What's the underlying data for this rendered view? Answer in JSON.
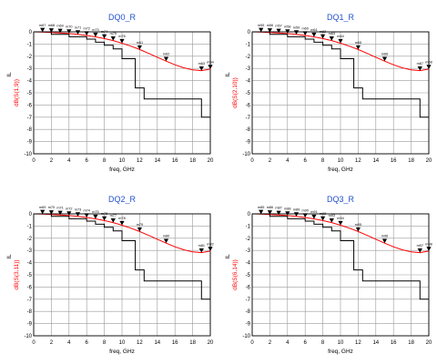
{
  "chart_data": [
    {
      "type": "line",
      "title": "DQ0_R",
      "xlabel": "freq, GHz",
      "ylabel_top": "IL",
      "ylabel_bottom": "dB(S(1,9))",
      "xlim": [
        0,
        20
      ],
      "ylim": [
        -10,
        0
      ],
      "x_ticks": [
        0,
        2,
        4,
        6,
        8,
        10,
        12,
        14,
        16,
        18,
        20
      ],
      "y_ticks": [
        0,
        -1,
        -2,
        -3,
        -4,
        -5,
        -6,
        -7,
        -8,
        -9,
        -10
      ],
      "grid": true,
      "series": [
        {
          "color": "#ff0000",
          "points": [
            [
              0,
              0
            ],
            [
              1,
              -0.02
            ],
            [
              2,
              -0.05
            ],
            [
              3,
              -0.09
            ],
            [
              4,
              -0.14
            ],
            [
              5,
              -0.21
            ],
            [
              6,
              -0.3
            ],
            [
              7,
              -0.41
            ],
            [
              8,
              -0.55
            ],
            [
              9,
              -0.72
            ],
            [
              10,
              -0.93
            ],
            [
              11,
              -1.17
            ],
            [
              12,
              -1.45
            ],
            [
              13,
              -1.76
            ],
            [
              14,
              -2.08
            ],
            [
              15,
              -2.4
            ],
            [
              16,
              -2.7
            ],
            [
              17,
              -2.95
            ],
            [
              18,
              -3.12
            ],
            [
              19,
              -3.18
            ],
            [
              20,
              -3.05
            ]
          ]
        },
        {
          "color": "#000000",
          "points": [
            [
              0,
              0
            ],
            [
              2,
              0
            ],
            [
              2,
              -0.2
            ],
            [
              4,
              -0.2
            ],
            [
              4,
              -0.4
            ],
            [
              6,
              -0.4
            ],
            [
              6,
              -0.6
            ],
            [
              7,
              -0.6
            ],
            [
              7,
              -0.85
            ],
            [
              8,
              -0.85
            ],
            [
              8,
              -1.1
            ],
            [
              9,
              -1.1
            ],
            [
              9,
              -1.4
            ],
            [
              10,
              -1.4
            ],
            [
              10,
              -2.2
            ],
            [
              11.5,
              -2.2
            ],
            [
              11.5,
              -4.6
            ],
            [
              12.5,
              -4.6
            ],
            [
              12.5,
              -5.5
            ],
            [
              19,
              -5.5
            ],
            [
              19,
              -7
            ],
            [
              20,
              -7
            ]
          ]
        }
      ],
      "markers": [
        {
          "label": "m67",
          "x": 1,
          "y": -0.02
        },
        {
          "label": "m68",
          "x": 2,
          "y": -0.05
        },
        {
          "label": "m69",
          "x": 3,
          "y": -0.09
        },
        {
          "label": "m70",
          "x": 4,
          "y": -0.14
        },
        {
          "label": "m71",
          "x": 5,
          "y": -0.21
        },
        {
          "label": "m72",
          "x": 6,
          "y": -0.3
        },
        {
          "label": "m73",
          "x": 7,
          "y": -0.41
        },
        {
          "label": "m74",
          "x": 8,
          "y": -0.55
        },
        {
          "label": "m75",
          "x": 9,
          "y": -0.72
        },
        {
          "label": "m76",
          "x": 10,
          "y": -0.93
        },
        {
          "label": "m61",
          "x": 12,
          "y": -1.45
        },
        {
          "label": "m62",
          "x": 15,
          "y": -2.4
        },
        {
          "label": "m63",
          "x": 19,
          "y": -3.18
        },
        {
          "label": "m64",
          "x": 20,
          "y": -3.05
        }
      ]
    },
    {
      "type": "line",
      "title": "DQ1_R",
      "xlabel": "freq, GHz",
      "ylabel_top": "IL",
      "ylabel_bottom": "dB(S(2,10))",
      "xlim": [
        0,
        20
      ],
      "ylim": [
        -10,
        0
      ],
      "x_ticks": [
        0,
        2,
        4,
        6,
        8,
        10,
        12,
        14,
        16,
        18,
        20
      ],
      "y_ticks": [
        0,
        -1,
        -2,
        -3,
        -4,
        -5,
        -6,
        -7,
        -8,
        -9,
        -10
      ],
      "grid": true,
      "series": [
        {
          "color": "#ff0000",
          "points": [
            [
              0,
              0
            ],
            [
              1,
              -0.02
            ],
            [
              2,
              -0.05
            ],
            [
              3,
              -0.09
            ],
            [
              4,
              -0.14
            ],
            [
              5,
              -0.21
            ],
            [
              6,
              -0.3
            ],
            [
              7,
              -0.41
            ],
            [
              8,
              -0.55
            ],
            [
              9,
              -0.72
            ],
            [
              10,
              -0.93
            ],
            [
              11,
              -1.17
            ],
            [
              12,
              -1.45
            ],
            [
              13,
              -1.76
            ],
            [
              14,
              -2.08
            ],
            [
              15,
              -2.4
            ],
            [
              16,
              -2.7
            ],
            [
              17,
              -2.95
            ],
            [
              18,
              -3.12
            ],
            [
              19,
              -3.18
            ],
            [
              20,
              -3.05
            ]
          ]
        },
        {
          "color": "#000000",
          "points": [
            [
              0,
              0
            ],
            [
              2,
              0
            ],
            [
              2,
              -0.2
            ],
            [
              4,
              -0.2
            ],
            [
              4,
              -0.4
            ],
            [
              6,
              -0.4
            ],
            [
              6,
              -0.6
            ],
            [
              7,
              -0.6
            ],
            [
              7,
              -0.85
            ],
            [
              8,
              -0.85
            ],
            [
              8,
              -1.1
            ],
            [
              9,
              -1.1
            ],
            [
              9,
              -1.4
            ],
            [
              10,
              -1.4
            ],
            [
              10,
              -2.2
            ],
            [
              11.5,
              -2.2
            ],
            [
              11.5,
              -4.6
            ],
            [
              12.5,
              -4.6
            ],
            [
              12.5,
              -5.5
            ],
            [
              19,
              -5.5
            ],
            [
              19,
              -7
            ],
            [
              20,
              -7
            ]
          ]
        }
      ],
      "markers": [
        {
          "label": "m55",
          "x": 1,
          "y": -0.02
        },
        {
          "label": "m56",
          "x": 2,
          "y": -0.05
        },
        {
          "label": "m57",
          "x": 3,
          "y": -0.09
        },
        {
          "label": "m58",
          "x": 4,
          "y": -0.14
        },
        {
          "label": "m59",
          "x": 5,
          "y": -0.21
        },
        {
          "label": "m60",
          "x": 6,
          "y": -0.3
        },
        {
          "label": "m61",
          "x": 7,
          "y": -0.41
        },
        {
          "label": "m62",
          "x": 8,
          "y": -0.55
        },
        {
          "label": "m63",
          "x": 9,
          "y": -0.72
        },
        {
          "label": "m64",
          "x": 10,
          "y": -0.93
        },
        {
          "label": "m65",
          "x": 12,
          "y": -1.45
        },
        {
          "label": "m66",
          "x": 15,
          "y": -2.4
        },
        {
          "label": "m67",
          "x": 19,
          "y": -3.18
        },
        {
          "label": "m68",
          "x": 20,
          "y": -3.05
        }
      ]
    },
    {
      "type": "line",
      "title": "DQ2_R",
      "xlabel": "freq, GHz",
      "ylabel_top": "IL",
      "ylabel_bottom": "dB(S(3,11))",
      "xlim": [
        0,
        20
      ],
      "ylim": [
        -10,
        0
      ],
      "x_ticks": [
        0,
        2,
        4,
        6,
        8,
        10,
        12,
        14,
        16,
        18,
        20
      ],
      "y_ticks": [
        0,
        -1,
        -2,
        -3,
        -4,
        -5,
        -6,
        -7,
        -8,
        -9,
        -10
      ],
      "grid": true,
      "series": [
        {
          "color": "#ff0000",
          "points": [
            [
              0,
              0
            ],
            [
              1,
              -0.02
            ],
            [
              2,
              -0.05
            ],
            [
              3,
              -0.09
            ],
            [
              4,
              -0.14
            ],
            [
              5,
              -0.21
            ],
            [
              6,
              -0.3
            ],
            [
              7,
              -0.41
            ],
            [
              8,
              -0.55
            ],
            [
              9,
              -0.72
            ],
            [
              10,
              -0.93
            ],
            [
              11,
              -1.17
            ],
            [
              12,
              -1.45
            ],
            [
              13,
              -1.76
            ],
            [
              14,
              -2.08
            ],
            [
              15,
              -2.4
            ],
            [
              16,
              -2.7
            ],
            [
              17,
              -2.95
            ],
            [
              18,
              -3.12
            ],
            [
              19,
              -3.18
            ],
            [
              20,
              -3.05
            ]
          ]
        },
        {
          "color": "#000000",
          "points": [
            [
              0,
              0
            ],
            [
              2,
              0
            ],
            [
              2,
              -0.2
            ],
            [
              4,
              -0.2
            ],
            [
              4,
              -0.4
            ],
            [
              6,
              -0.4
            ],
            [
              6,
              -0.6
            ],
            [
              7,
              -0.6
            ],
            [
              7,
              -0.85
            ],
            [
              8,
              -0.85
            ],
            [
              8,
              -1.1
            ],
            [
              9,
              -1.1
            ],
            [
              9,
              -1.4
            ],
            [
              10,
              -1.4
            ],
            [
              10,
              -2.2
            ],
            [
              11.5,
              -2.2
            ],
            [
              11.5,
              -4.6
            ],
            [
              12.5,
              -4.6
            ],
            [
              12.5,
              -5.5
            ],
            [
              19,
              -5.5
            ],
            [
              19,
              -7
            ],
            [
              20,
              -7
            ]
          ]
        }
      ],
      "markers": [
        {
          "label": "m69",
          "x": 1,
          "y": -0.02
        },
        {
          "label": "m70",
          "x": 2,
          "y": -0.05
        },
        {
          "label": "m71",
          "x": 3,
          "y": -0.09
        },
        {
          "label": "m72",
          "x": 4,
          "y": -0.14
        },
        {
          "label": "m73",
          "x": 5,
          "y": -0.21
        },
        {
          "label": "m74",
          "x": 6,
          "y": -0.3
        },
        {
          "label": "m75",
          "x": 7,
          "y": -0.41
        },
        {
          "label": "m76",
          "x": 8,
          "y": -0.55
        },
        {
          "label": "m77",
          "x": 9,
          "y": -0.72
        },
        {
          "label": "m78",
          "x": 10,
          "y": -0.93
        },
        {
          "label": "m79",
          "x": 12,
          "y": -1.45
        },
        {
          "label": "m80",
          "x": 15,
          "y": -2.4
        },
        {
          "label": "m81",
          "x": 19,
          "y": -3.18
        },
        {
          "label": "m82",
          "x": 20,
          "y": -3.05
        }
      ]
    },
    {
      "type": "line",
      "title": "DQ3_R",
      "xlabel": "freq, GHz",
      "ylabel_top": "IL",
      "ylabel_bottom": "dB(S(6,14))",
      "xlim": [
        0,
        20
      ],
      "ylim": [
        -10,
        0
      ],
      "x_ticks": [
        0,
        2,
        4,
        6,
        8,
        10,
        12,
        14,
        16,
        18,
        20
      ],
      "y_ticks": [
        0,
        -1,
        -2,
        -3,
        -4,
        -5,
        -6,
        -7,
        -8,
        -9,
        -10
      ],
      "grid": true,
      "series": [
        {
          "color": "#ff0000",
          "points": [
            [
              0,
              0
            ],
            [
              1,
              -0.02
            ],
            [
              2,
              -0.05
            ],
            [
              3,
              -0.09
            ],
            [
              4,
              -0.14
            ],
            [
              5,
              -0.21
            ],
            [
              6,
              -0.3
            ],
            [
              7,
              -0.41
            ],
            [
              8,
              -0.55
            ],
            [
              9,
              -0.72
            ],
            [
              10,
              -0.93
            ],
            [
              11,
              -1.17
            ],
            [
              12,
              -1.45
            ],
            [
              13,
              -1.76
            ],
            [
              14,
              -2.08
            ],
            [
              15,
              -2.4
            ],
            [
              16,
              -2.7
            ],
            [
              17,
              -2.95
            ],
            [
              18,
              -3.12
            ],
            [
              19,
              -3.18
            ],
            [
              20,
              -3.05
            ]
          ]
        },
        {
          "color": "#000000",
          "points": [
            [
              0,
              0
            ],
            [
              2,
              0
            ],
            [
              2,
              -0.2
            ],
            [
              4,
              -0.2
            ],
            [
              4,
              -0.4
            ],
            [
              6,
              -0.4
            ],
            [
              6,
              -0.6
            ],
            [
              7,
              -0.6
            ],
            [
              7,
              -0.85
            ],
            [
              8,
              -0.85
            ],
            [
              8,
              -1.1
            ],
            [
              9,
              -1.1
            ],
            [
              9,
              -1.4
            ],
            [
              10,
              -1.4
            ],
            [
              10,
              -2.2
            ],
            [
              11.5,
              -2.2
            ],
            [
              11.5,
              -4.6
            ],
            [
              12.5,
              -4.6
            ],
            [
              12.5,
              -5.5
            ],
            [
              19,
              -5.5
            ],
            [
              19,
              -7
            ],
            [
              20,
              -7
            ]
          ]
        }
      ],
      "markers": [
        {
          "label": "m85",
          "x": 1,
          "y": -0.02
        },
        {
          "label": "m86",
          "x": 2,
          "y": -0.05
        },
        {
          "label": "m87",
          "x": 3,
          "y": -0.09
        },
        {
          "label": "m88",
          "x": 4,
          "y": -0.14
        },
        {
          "label": "m89",
          "x": 5,
          "y": -0.21
        },
        {
          "label": "m90",
          "x": 6,
          "y": -0.3
        },
        {
          "label": "m91",
          "x": 7,
          "y": -0.41
        },
        {
          "label": "m92",
          "x": 8,
          "y": -0.55
        },
        {
          "label": "m93",
          "x": 9,
          "y": -0.72
        },
        {
          "label": "m94",
          "x": 10,
          "y": -0.93
        },
        {
          "label": "m95",
          "x": 12,
          "y": -1.45
        },
        {
          "label": "m96",
          "x": 15,
          "y": -2.4
        },
        {
          "label": "m97",
          "x": 19,
          "y": -3.18
        },
        {
          "label": "m98",
          "x": 20,
          "y": -3.05
        }
      ]
    }
  ]
}
